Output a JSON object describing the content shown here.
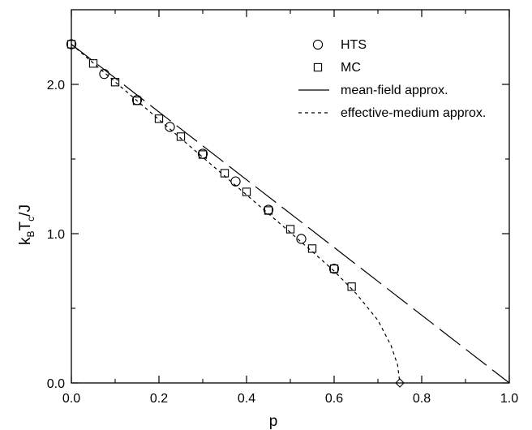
{
  "chart_data": {
    "type": "scatter",
    "title": "",
    "xlabel": "p",
    "ylabel": {
      "k": "k",
      "b": "B",
      "t": "T",
      "c": "c",
      "rest": "/J"
    },
    "xlim": [
      0.0,
      1.0
    ],
    "ylim": [
      0.0,
      2.5
    ],
    "x_ticks": [
      "0.0",
      "0.2",
      "0.4",
      "0.6",
      "0.8",
      "1.0"
    ],
    "y_ticks": [
      "0.0",
      "1.0",
      "2.0"
    ],
    "legend_position": "top-right",
    "grid": false,
    "series": [
      {
        "name": "HTS",
        "marker": "circle",
        "points": [
          [
            0.0,
            2.269
          ],
          [
            0.075,
            2.07
          ],
          [
            0.15,
            1.895
          ],
          [
            0.225,
            1.715
          ],
          [
            0.3,
            1.535
          ],
          [
            0.375,
            1.35
          ],
          [
            0.45,
            1.16
          ],
          [
            0.525,
            0.965
          ],
          [
            0.6,
            0.765
          ]
        ]
      },
      {
        "name": "MC",
        "marker": "square",
        "points": [
          [
            0.0,
            2.269
          ],
          [
            0.05,
            2.14
          ],
          [
            0.1,
            2.015
          ],
          [
            0.15,
            1.89
          ],
          [
            0.2,
            1.77
          ],
          [
            0.25,
            1.65
          ],
          [
            0.3,
            1.53
          ],
          [
            0.35,
            1.405
          ],
          [
            0.4,
            1.28
          ],
          [
            0.45,
            1.155
          ],
          [
            0.5,
            1.03
          ],
          [
            0.55,
            0.9
          ],
          [
            0.6,
            0.765
          ],
          [
            0.64,
            0.645
          ]
        ]
      },
      {
        "name": "mean-field approx.",
        "style": "long-dash",
        "points": [
          [
            0.0,
            2.269
          ],
          [
            1.0,
            0.0
          ]
        ]
      },
      {
        "name": "effective-medium approx.",
        "style": "short-dash",
        "points": [
          [
            0.0,
            2.269
          ],
          [
            0.1,
            2.017
          ],
          [
            0.2,
            1.764
          ],
          [
            0.3,
            1.512
          ],
          [
            0.4,
            1.26
          ],
          [
            0.5,
            1.008
          ],
          [
            0.55,
            0.88
          ],
          [
            0.6,
            0.75
          ],
          [
            0.65,
            0.6
          ],
          [
            0.7,
            0.42
          ],
          [
            0.73,
            0.25
          ],
          [
            0.745,
            0.12
          ],
          [
            0.75,
            0.0
          ]
        ]
      }
    ],
    "annotation": {
      "marker": "diamond",
      "x": 0.75,
      "y": 0.0
    }
  }
}
